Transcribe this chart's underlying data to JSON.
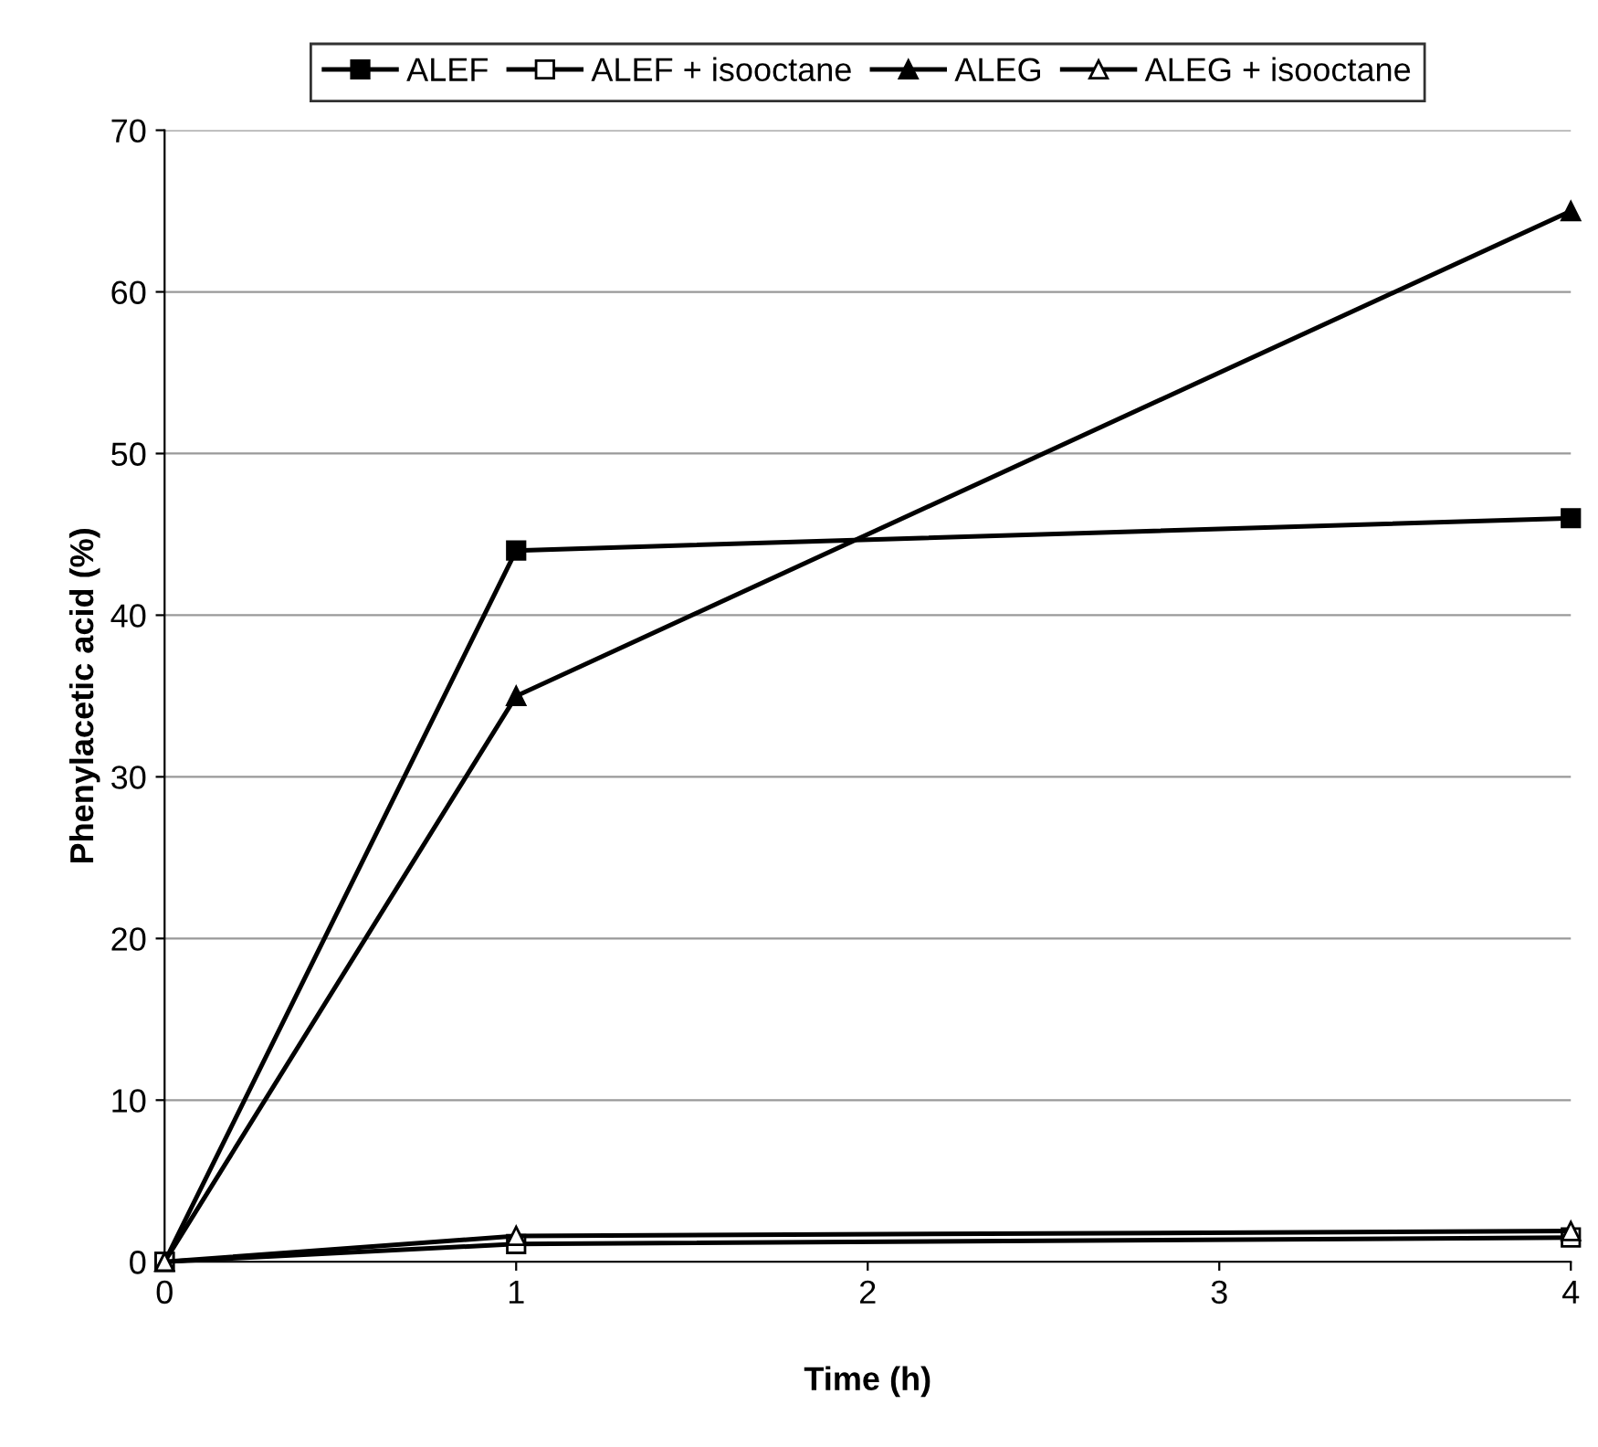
{
  "chart_data": {
    "type": "line",
    "xlabel": "Time (h)",
    "ylabel": "Phenylacetic acid (%)",
    "x": [
      0,
      1,
      4
    ],
    "series": [
      {
        "name": "ALEF",
        "color": "#000000",
        "marker": "square",
        "values": [
          0,
          44,
          46
        ]
      },
      {
        "name": "ALEF + isooctane",
        "color": "#000000",
        "marker": "square",
        "values": [
          0,
          1.1,
          1.5
        ]
      },
      {
        "name": "ALEG",
        "color": "#000000",
        "marker": "triangle",
        "values": [
          0,
          35,
          65
        ]
      },
      {
        "name": "ALEG + isooctane",
        "color": "#000000",
        "marker": "triangle",
        "values": [
          0,
          1.6,
          1.9
        ]
      }
    ],
    "xlim": [
      0,
      4
    ],
    "xticks": [
      0,
      1,
      2,
      3,
      4
    ],
    "ylim": [
      0,
      70
    ],
    "yticks": [
      0,
      10,
      20,
      30,
      40,
      50,
      60,
      70
    ],
    "grid": "y",
    "legend": "top",
    "line_style": "solid"
  }
}
